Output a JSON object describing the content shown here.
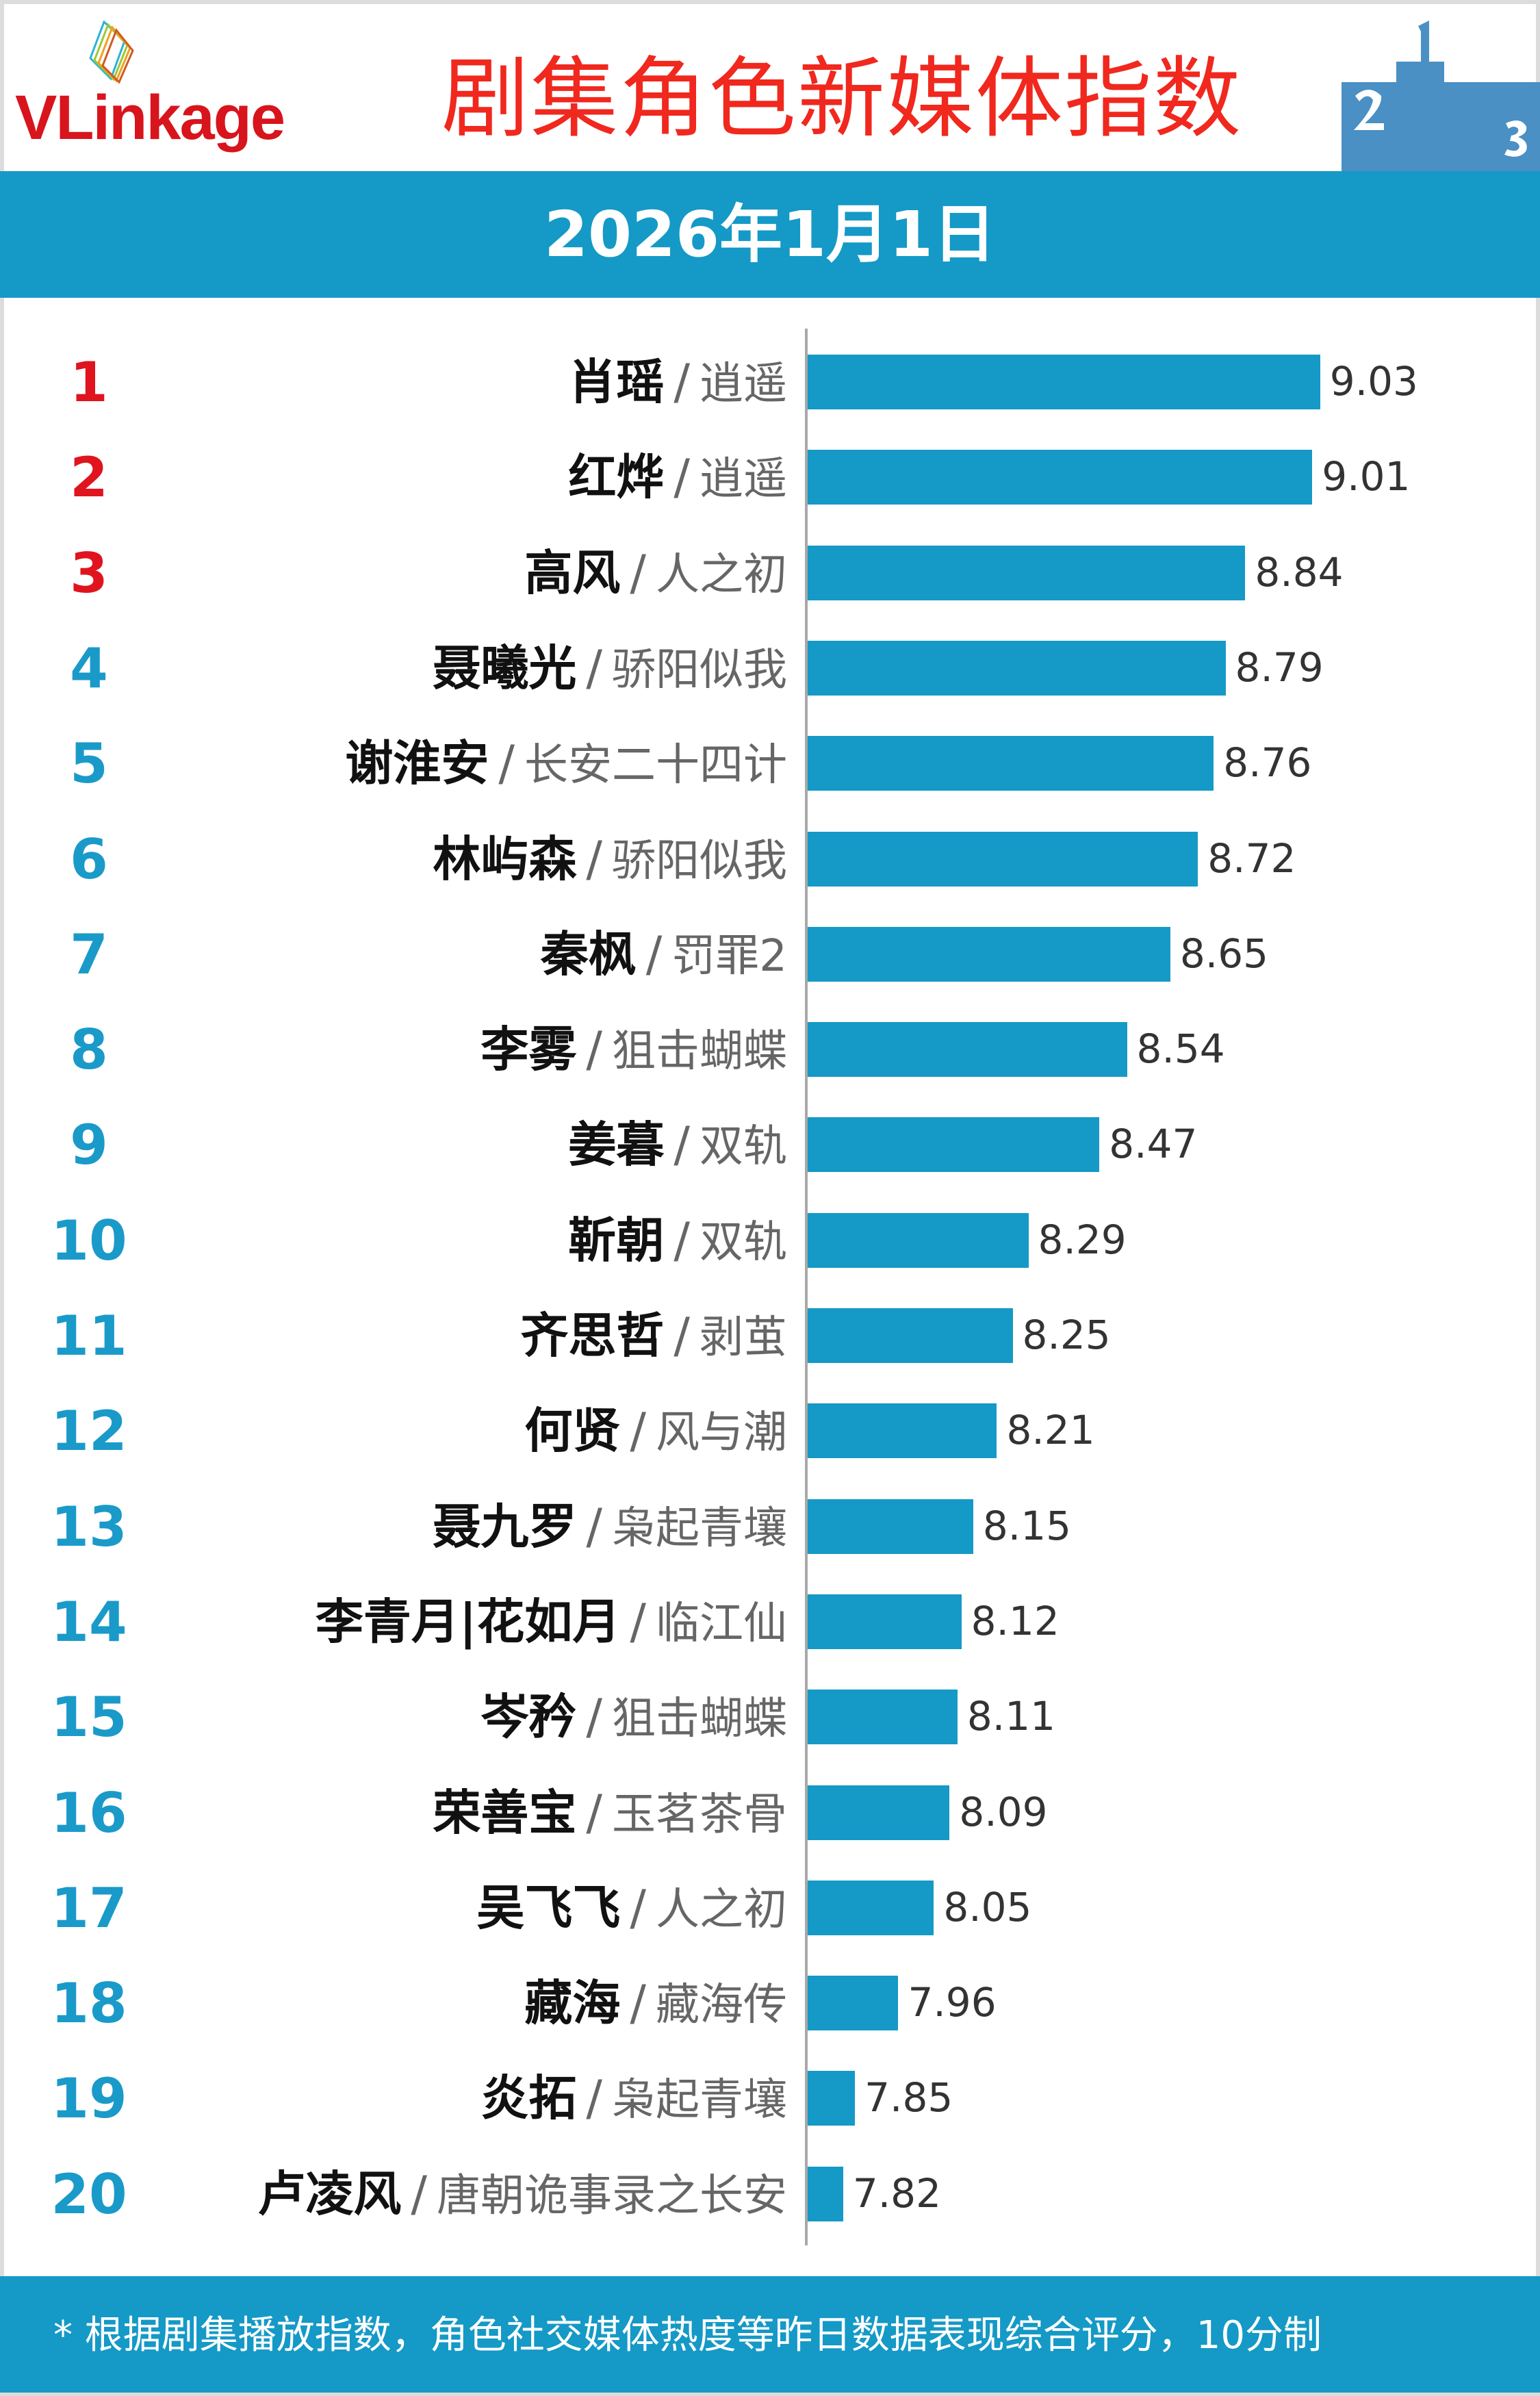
{
  "brand": {
    "logo_text": "VLinkage"
  },
  "header": {
    "title": "剧集角色新媒体指数",
    "podium_icon": "podium-icon",
    "date": "2026年1月1日"
  },
  "colors": {
    "accent": "#1599c6",
    "top3": "#e0141e",
    "rank": "#1a9ac9",
    "title": "#f0281e"
  },
  "chart_data": {
    "type": "bar",
    "orientation": "horizontal",
    "grid": false,
    "categories": [
      "肖瑶",
      "红烨",
      "高风",
      "聂曦光",
      "谢淮安",
      "林屿森",
      "秦枫",
      "李雾",
      "姜暮",
      "靳朝",
      "齐思哲",
      "何贤",
      "聂九罗",
      "李青月|花如月",
      "岑矜",
      "荣善宝",
      "吴飞飞",
      "藏海",
      "炎拓",
      "卢凌风"
    ],
    "dramas": [
      "逍遥",
      "逍遥",
      "人之初",
      "骄阳似我",
      "长安二十四计",
      "骄阳似我",
      "罚罪2",
      "狙击蝴蝶",
      "双轨",
      "双轨",
      "剥茧",
      "风与潮",
      "枭起青壤",
      "临江仙",
      "狙击蝴蝶",
      "玉茗茶骨",
      "人之初",
      "藏海传",
      "枭起青壤",
      "唐朝诡事录之长安"
    ],
    "ranks": [
      "1",
      "2",
      "3",
      "4",
      "5",
      "6",
      "7",
      "8",
      "9",
      "10",
      "11",
      "12",
      "13",
      "14",
      "15",
      "16",
      "17",
      "18",
      "19",
      "20"
    ],
    "values": [
      9.03,
      9.01,
      8.84,
      8.79,
      8.76,
      8.72,
      8.65,
      8.54,
      8.47,
      8.29,
      8.25,
      8.21,
      8.15,
      8.12,
      8.11,
      8.09,
      8.05,
      7.96,
      7.85,
      7.82
    ],
    "value_labels": [
      "9.03",
      "9.01",
      "8.84",
      "8.79",
      "8.76",
      "8.72",
      "8.65",
      "8.54",
      "8.47",
      "8.29",
      "8.25",
      "8.21",
      "8.15",
      "8.12",
      "8.11",
      "8.09",
      "8.05",
      "7.96",
      "7.85",
      "7.82"
    ]
  },
  "separator": "/",
  "footer": {
    "note": "* 根据剧集播放指数，角色社交媒体热度等昨日数据表现综合评分，10分制"
  }
}
